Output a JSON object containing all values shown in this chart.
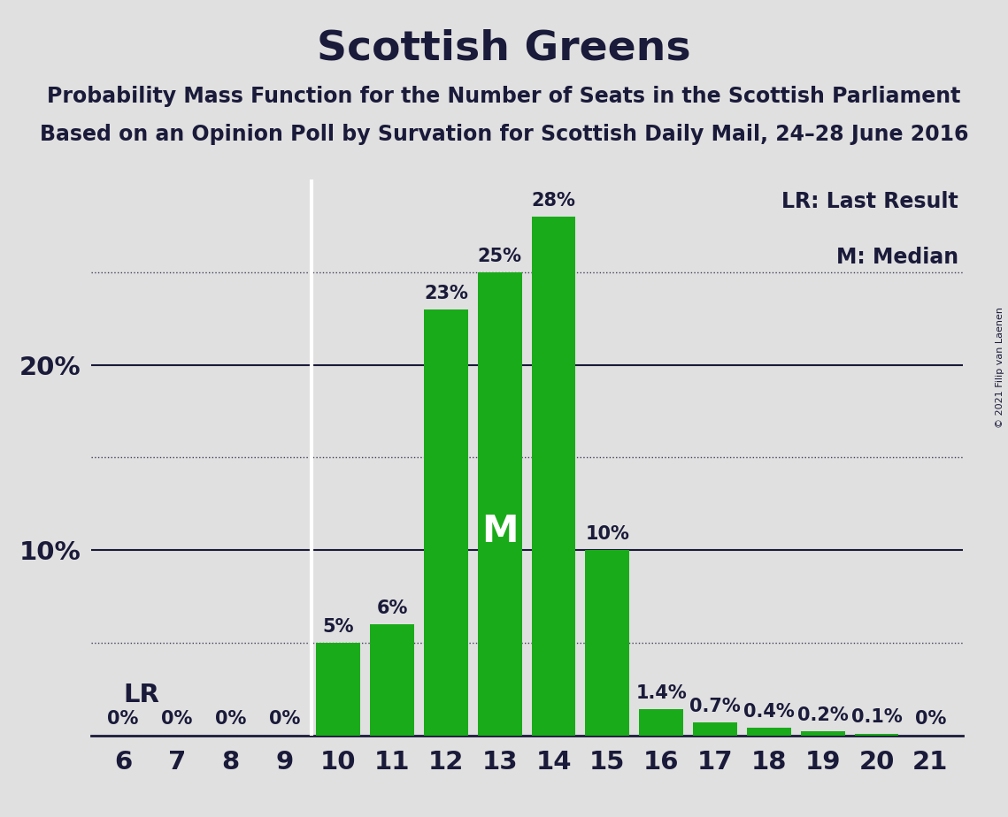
{
  "title": "Scottish Greens",
  "subtitle1": "Probability Mass Function for the Number of Seats in the Scottish Parliament",
  "subtitle2": "Based on an Opinion Poll by Survation for Scottish Daily Mail, 24–28 June 2016",
  "copyright": "© 2021 Filip van Laenen",
  "categories": [
    6,
    7,
    8,
    9,
    10,
    11,
    12,
    13,
    14,
    15,
    16,
    17,
    18,
    19,
    20,
    21
  ],
  "values": [
    0,
    0,
    0,
    0,
    5,
    6,
    23,
    25,
    28,
    10,
    1.4,
    0.7,
    0.4,
    0.2,
    0.1,
    0
  ],
  "labels": [
    "0%",
    "0%",
    "0%",
    "0%",
    "5%",
    "6%",
    "23%",
    "25%",
    "28%",
    "10%",
    "1.4%",
    "0.7%",
    "0.4%",
    "0.2%",
    "0.1%",
    "0%"
  ],
  "bar_color": "#1aab1a",
  "background_color": "#e0e0e0",
  "text_color": "#1a1a3a",
  "lr_seat": 9,
  "median_seat": 13,
  "dotted_lines": [
    5,
    15,
    25
  ],
  "solid_lines": [
    10,
    20
  ],
  "ylim_max": 30,
  "legend_lr": "LR: Last Result",
  "legend_m": "M: Median",
  "lr_label": "LR",
  "m_label": "M",
  "title_fontsize": 34,
  "subtitle_fontsize": 17,
  "bar_label_fontsize": 15,
  "tick_fontsize": 21,
  "legend_fontsize": 17
}
